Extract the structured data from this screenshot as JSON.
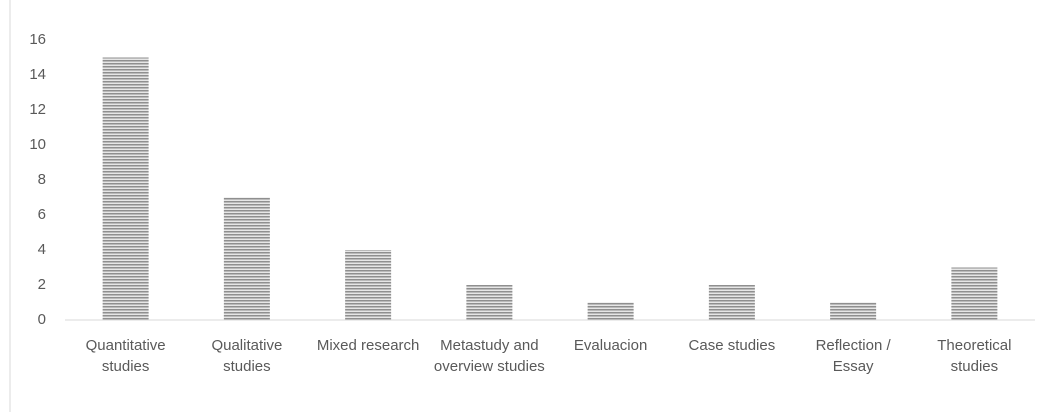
{
  "chart_data": {
    "type": "bar",
    "categories": [
      "Quantitative studies",
      "Qualitative studies",
      "Mixed research",
      "Metastudy and overview studies",
      "Evaluacion",
      "Case studies",
      "Reflection / Essay",
      "Theoretical studies"
    ],
    "values": [
      15,
      7,
      4,
      2,
      1,
      2,
      1,
      3
    ],
    "color": "#8f8f8f",
    "ylim": [
      0,
      16
    ],
    "yticks": [
      0,
      2,
      4,
      6,
      8,
      10,
      12,
      14,
      16
    ],
    "grid": false
  }
}
